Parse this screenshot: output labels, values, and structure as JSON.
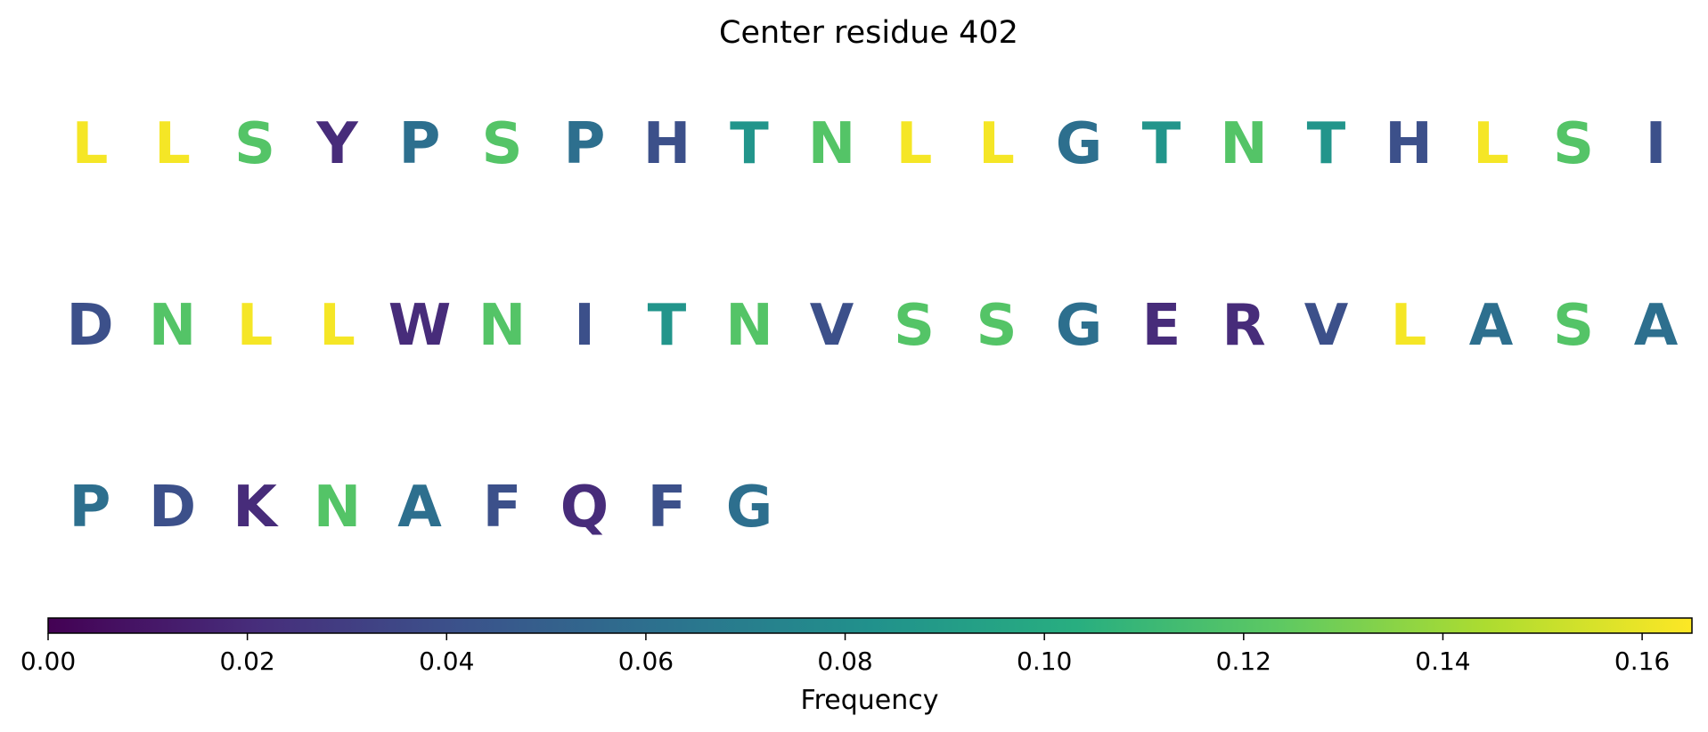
{
  "chart_data": {
    "type": "sequence-heatmap",
    "title": "Center residue 402",
    "colorbar": {
      "label": "Frequency",
      "range": [
        0.0,
        0.165
      ],
      "colormap": "viridis",
      "ticks": [
        "0.00",
        "0.02",
        "0.04",
        "0.06",
        "0.08",
        "0.10",
        "0.12",
        "0.14",
        "0.16"
      ],
      "tick_values": [
        0.0,
        0.02,
        0.04,
        0.06,
        0.08,
        0.1,
        0.12,
        0.14,
        0.16
      ]
    },
    "rows": [
      [
        {
          "residue": "L",
          "frequency": 0.163
        },
        {
          "residue": "L",
          "frequency": 0.163
        },
        {
          "residue": "S",
          "frequency": 0.12
        },
        {
          "residue": "Y",
          "frequency": 0.02
        },
        {
          "residue": "P",
          "frequency": 0.06
        },
        {
          "residue": "S",
          "frequency": 0.12
        },
        {
          "residue": "P",
          "frequency": 0.06
        },
        {
          "residue": "H",
          "frequency": 0.04
        },
        {
          "residue": "T",
          "frequency": 0.085
        },
        {
          "residue": "N",
          "frequency": 0.12
        },
        {
          "residue": "L",
          "frequency": 0.163
        },
        {
          "residue": "L",
          "frequency": 0.163
        },
        {
          "residue": "G",
          "frequency": 0.06
        },
        {
          "residue": "T",
          "frequency": 0.085
        },
        {
          "residue": "N",
          "frequency": 0.12
        },
        {
          "residue": "T",
          "frequency": 0.085
        },
        {
          "residue": "H",
          "frequency": 0.04
        },
        {
          "residue": "L",
          "frequency": 0.163
        },
        {
          "residue": "S",
          "frequency": 0.12
        },
        {
          "residue": "I",
          "frequency": 0.04
        }
      ],
      [
        {
          "residue": "D",
          "frequency": 0.04
        },
        {
          "residue": "N",
          "frequency": 0.12
        },
        {
          "residue": "L",
          "frequency": 0.163
        },
        {
          "residue": "L",
          "frequency": 0.163
        },
        {
          "residue": "W",
          "frequency": 0.02
        },
        {
          "residue": "N",
          "frequency": 0.12
        },
        {
          "residue": "I",
          "frequency": 0.04
        },
        {
          "residue": "T",
          "frequency": 0.085
        },
        {
          "residue": "N",
          "frequency": 0.12
        },
        {
          "residue": "V",
          "frequency": 0.04
        },
        {
          "residue": "S",
          "frequency": 0.12
        },
        {
          "residue": "S",
          "frequency": 0.12
        },
        {
          "residue": "G",
          "frequency": 0.06
        },
        {
          "residue": "E",
          "frequency": 0.02
        },
        {
          "residue": "R",
          "frequency": 0.02
        },
        {
          "residue": "V",
          "frequency": 0.04
        },
        {
          "residue": "L",
          "frequency": 0.163
        },
        {
          "residue": "A",
          "frequency": 0.06
        },
        {
          "residue": "S",
          "frequency": 0.12
        },
        {
          "residue": "A",
          "frequency": 0.06
        }
      ],
      [
        {
          "residue": "P",
          "frequency": 0.06
        },
        {
          "residue": "D",
          "frequency": 0.04
        },
        {
          "residue": "K",
          "frequency": 0.02
        },
        {
          "residue": "N",
          "frequency": 0.12
        },
        {
          "residue": "A",
          "frequency": 0.06
        },
        {
          "residue": "F",
          "frequency": 0.04
        },
        {
          "residue": "Q",
          "frequency": 0.02
        },
        {
          "residue": "F",
          "frequency": 0.04
        },
        {
          "residue": "G",
          "frequency": 0.06
        }
      ]
    ]
  }
}
